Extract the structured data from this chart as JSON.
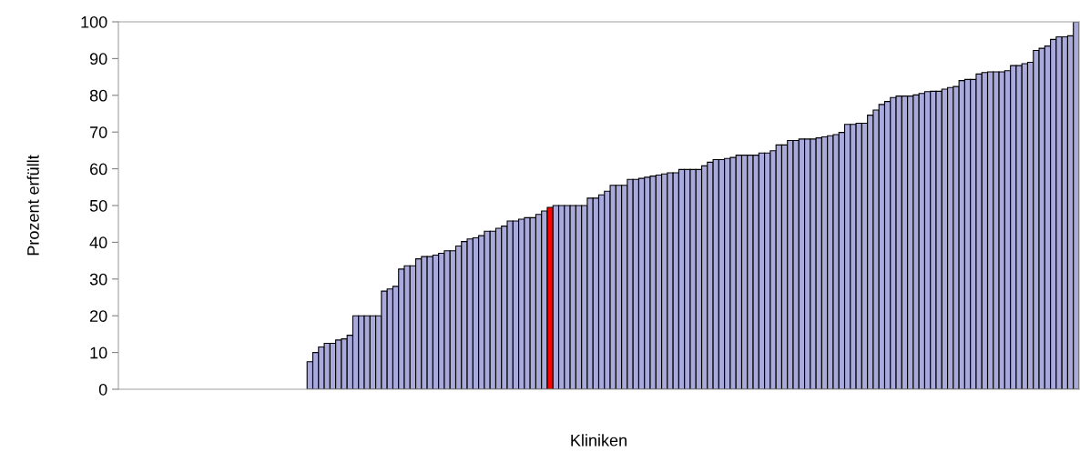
{
  "chart_data": {
    "type": "bar",
    "xlabel": "Kliniken",
    "ylabel": "Prozent erfüllt",
    "categories": [
      null,
      null,
      null,
      null,
      null,
      null,
      null,
      null,
      null,
      null,
      null,
      null,
      null,
      null,
      null,
      null,
      null,
      null,
      null,
      null,
      null,
      null,
      null,
      null,
      null,
      null,
      null,
      null,
      null,
      null,
      null,
      null,
      null,
      null,
      null,
      null,
      null,
      null,
      null,
      null,
      null,
      null,
      null,
      null,
      null,
      null,
      null,
      null,
      null,
      null,
      null,
      null,
      null,
      null,
      null,
      null,
      null,
      null,
      null,
      null,
      null,
      null,
      null,
      null,
      null,
      null,
      null,
      null,
      null,
      null,
      null,
      null,
      null,
      null,
      null,
      null,
      null,
      null,
      null,
      null,
      null,
      null,
      null,
      null,
      null,
      null,
      null,
      null,
      null,
      null,
      null,
      null,
      null,
      null,
      null,
      null,
      null,
      null,
      null,
      null,
      null,
      null,
      null,
      null,
      null,
      null,
      null,
      null,
      null,
      null,
      null,
      null,
      null,
      null,
      null,
      null,
      null,
      null,
      null,
      null,
      null,
      null,
      null,
      null,
      null,
      null,
      null,
      null,
      null,
      null,
      null,
      null,
      null,
      null,
      null,
      null,
      null,
      null,
      null,
      null,
      null,
      null,
      null,
      null,
      null,
      null,
      null,
      null,
      null,
      null,
      null,
      null,
      null,
      null,
      null,
      null,
      null,
      null,
      null,
      null,
      null,
      null,
      null,
      null,
      null,
      null,
      null,
      null
    ],
    "values": [
      null,
      null,
      null,
      null,
      null,
      null,
      null,
      null,
      null,
      null,
      null,
      null,
      null,
      null,
      null,
      null,
      null,
      null,
      null,
      null,
      null,
      null,
      null,
      null,
      null,
      null,
      null,
      null,
      null,
      null,
      null,
      null,
      null,
      7.5,
      10,
      11.5,
      12.5,
      12.5,
      13.4,
      13.7,
      14.7,
      20,
      20,
      20,
      20,
      20,
      26.7,
      27.3,
      28,
      32.7,
      33.6,
      33.6,
      35.5,
      36.1,
      36.1,
      36.5,
      37,
      37.7,
      37.7,
      39,
      40.2,
      40.9,
      41.2,
      41.8,
      43,
      43,
      43.8,
      44.4,
      45.8,
      45.8,
      46.3,
      46.7,
      46.7,
      47.6,
      48.5,
      49.5,
      50,
      50,
      50,
      50,
      50,
      50,
      52,
      52,
      52.9,
      53.9,
      55.5,
      55.5,
      55.5,
      57.1,
      57.1,
      57.4,
      57.7,
      58,
      58.3,
      58.6,
      58.9,
      58.9,
      59.8,
      59.8,
      59.8,
      59.8,
      60.8,
      61.8,
      62.5,
      62.5,
      62.8,
      63.1,
      63.7,
      63.7,
      63.7,
      63.7,
      64.3,
      64.3,
      64.9,
      66.5,
      66.5,
      67.7,
      67.7,
      68.1,
      68.1,
      68.1,
      68.4,
      68.7,
      69,
      69.3,
      69.9,
      72.1,
      72.1,
      72.4,
      72.4,
      74.6,
      76,
      77.5,
      78.3,
      79.4,
      79.8,
      79.8,
      79.8,
      80.1,
      80.5,
      81,
      81.1,
      81.1,
      81.7,
      82.1,
      82.4,
      84,
      84.3,
      84.3,
      85.8,
      86.2,
      86.4,
      86.4,
      86.4,
      86.7,
      88.1,
      88.1,
      88.6,
      89,
      92.2,
      92.8,
      93.4,
      95.2,
      95.9,
      95.9,
      96.2,
      100
    ],
    "colors": [
      null,
      null,
      null,
      null,
      null,
      null,
      null,
      null,
      null,
      null,
      null,
      null,
      null,
      null,
      null,
      null,
      null,
      null,
      null,
      null,
      null,
      null,
      null,
      null,
      null,
      null,
      null,
      null,
      null,
      null,
      null,
      null,
      null,
      "#a9a9dc",
      "#a9a9dc",
      "#a9a9dc",
      "#a9a9dc",
      "#a9a9dc",
      "#a9a9dc",
      "#a9a9dc",
      "#a9a9dc",
      "#a9a9dc",
      "#a9a9dc",
      "#a9a9dc",
      "#a9a9dc",
      "#a9a9dc",
      "#a9a9dc",
      "#a9a9dc",
      "#a9a9dc",
      "#a9a9dc",
      "#a9a9dc",
      "#a9a9dc",
      "#a9a9dc",
      "#a9a9dc",
      "#a9a9dc",
      "#a9a9dc",
      "#a9a9dc",
      "#a9a9dc",
      "#a9a9dc",
      "#a9a9dc",
      "#a9a9dc",
      "#a9a9dc",
      "#a9a9dc",
      "#a9a9dc",
      "#a9a9dc",
      "#a9a9dc",
      "#a9a9dc",
      "#a9a9dc",
      "#a9a9dc",
      "#a9a9dc",
      "#a9a9dc",
      "#a9a9dc",
      "#a9a9dc",
      "#a9a9dc",
      "#a9a9dc",
      "#ff0000",
      "#a9a9dc",
      "#a9a9dc",
      "#a9a9dc",
      "#a9a9dc",
      "#a9a9dc",
      "#a9a9dc",
      "#a9a9dc",
      "#a9a9dc",
      "#a9a9dc",
      "#a9a9dc",
      "#a9a9dc",
      "#a9a9dc",
      "#a9a9dc",
      "#a9a9dc",
      "#a9a9dc",
      "#a9a9dc",
      "#a9a9dc",
      "#a9a9dc",
      "#a9a9dc",
      "#a9a9dc",
      "#a9a9dc",
      "#a9a9dc",
      "#a9a9dc",
      "#a9a9dc",
      "#a9a9dc",
      "#a9a9dc",
      "#a9a9dc",
      "#a9a9dc",
      "#a9a9dc",
      "#a9a9dc",
      "#a9a9dc",
      "#a9a9dc",
      "#a9a9dc",
      "#a9a9dc",
      "#a9a9dc",
      "#a9a9dc",
      "#a9a9dc",
      "#a9a9dc",
      "#a9a9dc",
      "#a9a9dc",
      "#a9a9dc",
      "#a9a9dc",
      "#a9a9dc",
      "#a9a9dc",
      "#a9a9dc",
      "#a9a9dc",
      "#a9a9dc",
      "#a9a9dc",
      "#a9a9dc",
      "#a9a9dc",
      "#a9a9dc",
      "#a9a9dc",
      "#a9a9dc",
      "#a9a9dc",
      "#a9a9dc",
      "#a9a9dc",
      "#a9a9dc",
      "#a9a9dc",
      "#a9a9dc",
      "#a9a9dc",
      "#a9a9dc",
      "#a9a9dc",
      "#a9a9dc",
      "#a9a9dc",
      "#a9a9dc",
      "#a9a9dc",
      "#a9a9dc",
      "#a9a9dc",
      "#a9a9dc",
      "#a9a9dc",
      "#a9a9dc",
      "#a9a9dc",
      "#a9a9dc",
      "#a9a9dc",
      "#a9a9dc",
      "#a9a9dc",
      "#a9a9dc",
      "#a9a9dc",
      "#a9a9dc",
      "#a9a9dc",
      "#a9a9dc",
      "#a9a9dc",
      "#a9a9dc",
      "#a9a9dc",
      "#a9a9dc",
      "#a9a9dc",
      "#a9a9dc",
      "#a9a9dc",
      "#a9a9dc",
      "#a9a9dc",
      "#a9a9dc",
      "#a9a9dc"
    ],
    "ylim": [
      0,
      100
    ],
    "yticks": [
      0,
      10,
      20,
      30,
      40,
      50,
      60,
      70,
      80,
      90,
      100
    ],
    "grid": false,
    "legend": false
  }
}
